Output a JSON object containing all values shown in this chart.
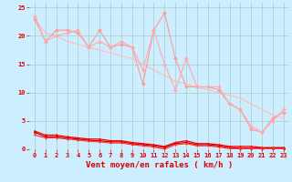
{
  "background_color": "#cceeff",
  "grid_color": "#aacccc",
  "xlabel": "Vent moyen/en rafales ( km/h )",
  "xlim": [
    -0.5,
    23.5
  ],
  "ylim": [
    0,
    26
  ],
  "xticks": [
    0,
    1,
    2,
    3,
    4,
    5,
    6,
    7,
    8,
    9,
    10,
    11,
    12,
    13,
    14,
    15,
    16,
    17,
    18,
    19,
    20,
    21,
    22,
    23
  ],
  "yticks": [
    0,
    5,
    10,
    15,
    20,
    25
  ],
  "series": [
    {
      "x": [
        0,
        1,
        2,
        3,
        4,
        5,
        6,
        7,
        8,
        9,
        10,
        11,
        12,
        13,
        14,
        15,
        16,
        17,
        18,
        19,
        20,
        21,
        22,
        23
      ],
      "y": [
        23,
        20.5,
        20,
        19,
        18.5,
        18,
        17.5,
        17,
        16.5,
        16,
        15,
        14,
        13,
        12,
        11.5,
        11,
        10.5,
        10,
        9.5,
        9,
        8,
        7,
        6,
        5.5
      ],
      "color": "#ffbbbb",
      "lw": 0.8,
      "marker": null,
      "ms": 0
    },
    {
      "x": [
        0,
        1,
        2,
        3,
        4,
        5,
        6,
        7,
        8,
        9,
        10,
        11,
        12,
        13,
        14,
        15,
        16,
        17,
        18,
        19,
        20,
        21,
        22,
        23
      ],
      "y": [
        23,
        19,
        21,
        21,
        20.5,
        18,
        21,
        18,
        18.5,
        18,
        11.5,
        21,
        24,
        16,
        11,
        11,
        11,
        10.5,
        8,
        7,
        3.5,
        3,
        5.5,
        6.5
      ],
      "color": "#ff9999",
      "lw": 0.8,
      "marker": "D",
      "ms": 2.0
    },
    {
      "x": [
        0,
        1,
        2,
        3,
        4,
        5,
        6,
        7,
        8,
        9,
        10,
        11,
        12,
        13,
        14,
        15,
        16,
        17,
        18,
        19,
        20,
        21,
        22,
        23
      ],
      "y": [
        23.5,
        19,
        20,
        20.5,
        21,
        18,
        19,
        18,
        19,
        18,
        14,
        21,
        15,
        10.5,
        16,
        11,
        11,
        11,
        8,
        7,
        4,
        3,
        5,
        7
      ],
      "color": "#ffaaaa",
      "lw": 0.8,
      "marker": "D",
      "ms": 2.0
    },
    {
      "x": [
        0,
        1,
        2,
        3,
        4,
        5,
        6,
        7,
        8,
        9,
        10,
        11,
        12,
        13,
        14,
        15,
        16,
        17,
        18,
        19,
        20,
        21,
        22,
        23
      ],
      "y": [
        3.2,
        2.5,
        2.5,
        2.2,
        2.0,
        1.8,
        1.8,
        1.5,
        1.5,
        1.2,
        1.0,
        0.8,
        0.5,
        1.2,
        1.5,
        1.0,
        1.0,
        0.8,
        0.5,
        0.5,
        0.5,
        0.3,
        0.3,
        0.3
      ],
      "color": "#ff0000",
      "lw": 0.9,
      "marker": "^",
      "ms": 2.0
    },
    {
      "x": [
        0,
        1,
        2,
        3,
        4,
        5,
        6,
        7,
        8,
        9,
        10,
        11,
        12,
        13,
        14,
        15,
        16,
        17,
        18,
        19,
        20,
        21,
        22,
        23
      ],
      "y": [
        3.0,
        2.2,
        2.2,
        2.0,
        1.8,
        1.6,
        1.5,
        1.3,
        1.3,
        1.0,
        0.8,
        0.6,
        0.3,
        1.0,
        1.2,
        0.8,
        0.8,
        0.6,
        0.3,
        0.2,
        0.2,
        0.2,
        0.2,
        0.2
      ],
      "color": "#cc0000",
      "lw": 0.9,
      "marker": "^",
      "ms": 1.5
    },
    {
      "x": [
        0,
        1,
        2,
        3,
        4,
        5,
        6,
        7,
        8,
        9,
        10,
        11,
        12,
        13,
        14,
        15,
        16,
        17,
        18,
        19,
        20,
        21,
        22,
        23
      ],
      "y": [
        2.5,
        2.0,
        2.0,
        1.8,
        1.6,
        1.4,
        1.3,
        1.1,
        1.1,
        0.8,
        0.6,
        0.4,
        0.0,
        0.8,
        1.0,
        0.6,
        0.6,
        0.4,
        0.1,
        0.1,
        0.1,
        0.1,
        0.1,
        0.1
      ],
      "color": "#ff3333",
      "lw": 0.8,
      "marker": "v",
      "ms": 1.5
    }
  ],
  "xlabel_color": "#dd0000",
  "xlabel_fontsize": 6.5,
  "tick_color": "#dd0000",
  "tick_fontsize": 5.0
}
